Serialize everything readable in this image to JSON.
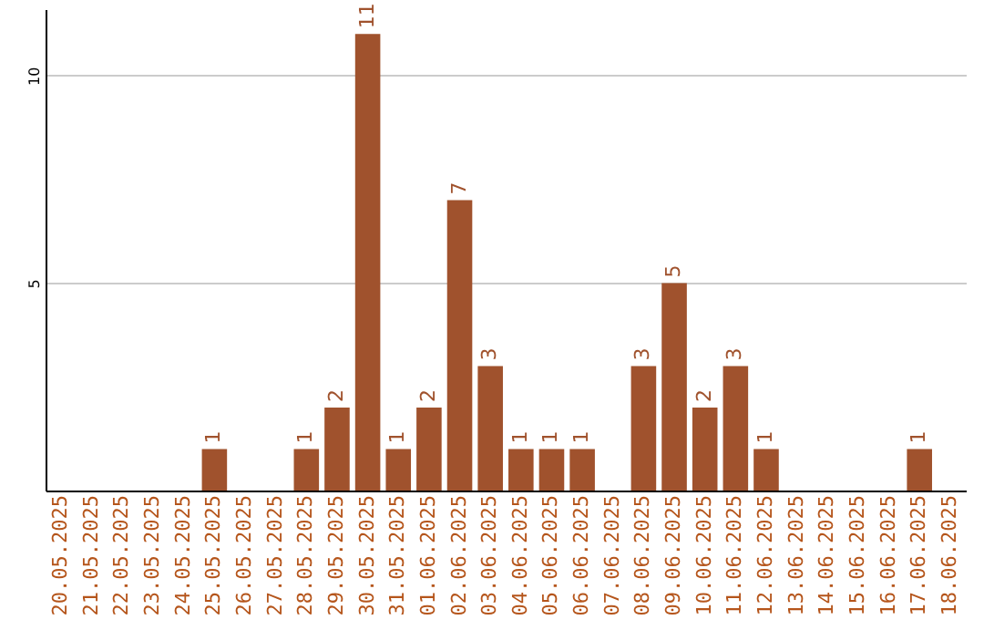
{
  "chart_data": {
    "type": "bar",
    "categories": [
      "20.05.2025",
      "21.05.2025",
      "22.05.2025",
      "23.05.2025",
      "24.05.2025",
      "25.05.2025",
      "26.05.2025",
      "27.05.2025",
      "28.05.2025",
      "29.05.2025",
      "30.05.2025",
      "31.05.2025",
      "01.06.2025",
      "02.06.2025",
      "03.06.2025",
      "04.06.2025",
      "05.06.2025",
      "06.06.2025",
      "07.06.2025",
      "08.06.2025",
      "09.06.2025",
      "10.06.2025",
      "11.06.2025",
      "12.06.2025",
      "13.06.2025",
      "14.06.2025",
      "15.06.2025",
      "16.06.2025",
      "17.06.2025",
      "18.06.2025"
    ],
    "values": [
      0,
      0,
      0,
      0,
      0,
      1,
      0,
      0,
      1,
      2,
      11,
      1,
      2,
      7,
      3,
      1,
      1,
      1,
      0,
      3,
      5,
      2,
      3,
      1,
      0,
      0,
      0,
      0,
      1,
      0
    ],
    "value_labels": [
      null,
      null,
      null,
      null,
      null,
      "1",
      null,
      null,
      "1",
      "2",
      "11",
      "1",
      "2",
      "7",
      "3",
      "1",
      "1",
      "1",
      null,
      "3",
      "5",
      "2",
      "3",
      "1",
      null,
      null,
      null,
      null,
      "1",
      null
    ],
    "color": "#a0522d",
    "ylim": [
      0,
      11.6
    ],
    "yticks": [
      5,
      10
    ],
    "grid": "y"
  }
}
